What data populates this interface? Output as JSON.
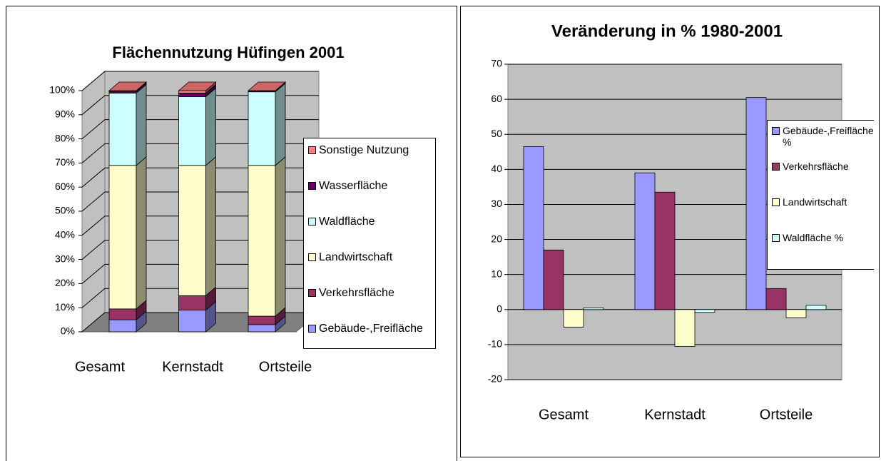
{
  "chart_data": [
    {
      "type": "stacked-bar-3d",
      "title": "Flächennutzung Hüfingen 2001",
      "categories": [
        "Gesamt",
        "Kernstadt",
        "Ortsteile"
      ],
      "series": [
        {
          "name": "Gebäude-,Freifläche",
          "color": "#9999ff",
          "values": [
            5,
            9,
            3
          ]
        },
        {
          "name": "Verkehrsfläche",
          "color": "#993366",
          "values": [
            4.5,
            6,
            3.5
          ]
        },
        {
          "name": "Landwirtschaft",
          "color": "#ffffcc",
          "values": [
            59.5,
            54,
            62.5
          ]
        },
        {
          "name": "Waldfläche",
          "color": "#ccffff",
          "values": [
            30,
            28.5,
            30.5
          ]
        },
        {
          "name": "Wasserfläche",
          "color": "#660066",
          "values": [
            0.7,
            1.5,
            0.3
          ]
        },
        {
          "name": "Sonstige Nutzung",
          "color": "#ff8080",
          "values": [
            0.3,
            1,
            0.2
          ]
        }
      ],
      "ylim": [
        0,
        100
      ],
      "yticks": [
        {
          "value": 0,
          "label": "0%"
        },
        {
          "value": 10,
          "label": "10%"
        },
        {
          "value": 20,
          "label": "20%"
        },
        {
          "value": 30,
          "label": "30%"
        },
        {
          "value": 40,
          "label": "40%"
        },
        {
          "value": 50,
          "label": "50%"
        },
        {
          "value": 60,
          "label": "60%"
        },
        {
          "value": 70,
          "label": "70%"
        },
        {
          "value": 80,
          "label": "80%"
        },
        {
          "value": 90,
          "label": "90%"
        },
        {
          "value": 100,
          "label": "100%"
        }
      ],
      "grid": true,
      "legend": "right"
    },
    {
      "type": "bar",
      "title": "Veränderung in % 1980-2001",
      "categories": [
        "Gesamt",
        "Kernstadt",
        "Ortsteile"
      ],
      "series": [
        {
          "name": "Gebäude-,Freifläche %",
          "color": "#9999ff",
          "values": [
            46.5,
            39,
            60.5
          ]
        },
        {
          "name": "Verkehrsfläche",
          "color": "#993366",
          "values": [
            17,
            33.5,
            6
          ]
        },
        {
          "name": "Landwirtschaft",
          "color": "#ffffcc",
          "values": [
            -5,
            -10.5,
            -2.3
          ]
        },
        {
          "name": "Waldfläche %",
          "color": "#ccffff",
          "values": [
            0.5,
            -0.8,
            1.2
          ]
        }
      ],
      "ylim": [
        -20,
        70
      ],
      "yticks": [
        -20,
        -10,
        0,
        10,
        20,
        30,
        40,
        50,
        60,
        70
      ],
      "grid": true,
      "legend": "right"
    }
  ]
}
